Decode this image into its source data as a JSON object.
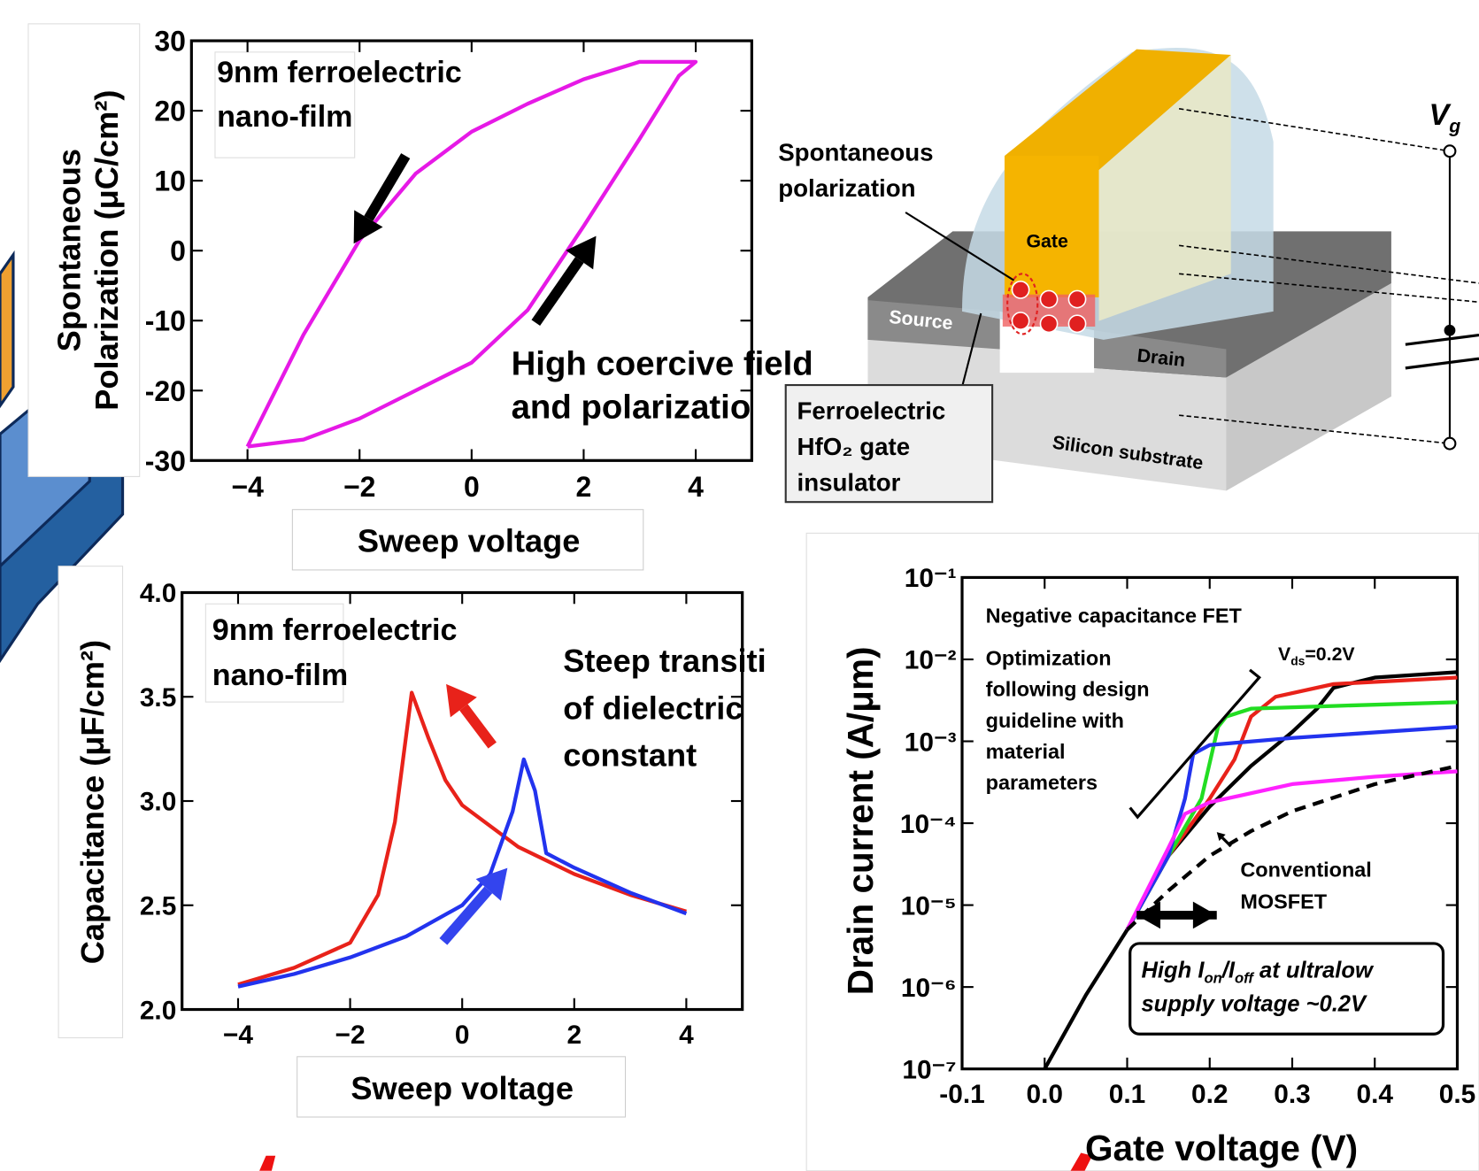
{
  "chart_data": [
    {
      "type": "line",
      "color": "#e619e6",
      "xlim": [
        -5,
        5
      ],
      "ylim": [
        -30,
        30
      ],
      "xticks": [
        {
          "value": -4,
          "label": "−4"
        },
        {
          "value": -2,
          "label": "−2"
        },
        0,
        2,
        4
      ],
      "yticks": [
        -30,
        -20,
        -10,
        0,
        10,
        20,
        30
      ],
      "xlabel": "Sweep voltage",
      "ylabel": [
        "Spontaneous",
        "Polarization (μC/cm²)"
      ],
      "annotations": [
        [
          "9nm ferroelectric",
          "nano-film"
        ],
        [
          "High coercive field",
          "and polarizatio"
        ]
      ],
      "x": [
        -4,
        -3,
        -2,
        -1,
        0,
        1,
        2,
        3,
        3.7,
        4,
        3,
        2,
        1,
        0,
        -1,
        -2,
        -3,
        -3.5,
        -4
      ],
      "values": [
        -28,
        -27,
        -24,
        -20,
        -16,
        -8.5,
        3.5,
        16,
        25,
        27,
        27,
        24.5,
        21,
        17,
        11,
        1.5,
        -12,
        -20,
        -28
      ]
    },
    {
      "type": "line",
      "xlim": [
        -5,
        5
      ],
      "ylim": [
        2,
        4
      ],
      "xticks": [
        {
          "value": -4,
          "label": "−4"
        },
        {
          "value": -2,
          "label": "−2"
        },
        0,
        2,
        4
      ],
      "yticks": [
        {
          "value": 2,
          "label": "2.0"
        },
        2.5,
        {
          "value": 3,
          "label": "3.0"
        },
        3.5,
        {
          "value": 4,
          "label": "4.0"
        }
      ],
      "xlabel": "Sweep voltage",
      "ylabel": [
        "Capacitance (μF/cm²)"
      ],
      "annotations": [
        [
          "9nm ferroelectric",
          "nano-film"
        ],
        [
          "Steep transiti",
          "of dielectric",
          "constant"
        ]
      ],
      "series": [
        {
          "color": "#e8221a",
          "x": [
            -4,
            -3,
            -2,
            -1.5,
            -1.2,
            -0.9,
            -0.6,
            -0.3,
            0,
            1,
            2,
            3,
            4
          ],
          "values": [
            2.12,
            2.2,
            2.32,
            2.55,
            2.9,
            3.52,
            3.3,
            3.1,
            2.98,
            2.78,
            2.65,
            2.55,
            2.47
          ]
        },
        {
          "color": "#2233ee",
          "x": [
            -4,
            -3,
            -2,
            -1,
            0,
            0.5,
            0.9,
            1.1,
            1.3,
            1.5,
            2,
            3,
            4
          ],
          "values": [
            2.11,
            2.17,
            2.25,
            2.35,
            2.5,
            2.65,
            2.95,
            3.2,
            3.05,
            2.75,
            2.68,
            2.56,
            2.46
          ]
        }
      ]
    },
    {
      "type": "line",
      "log_y": true,
      "xlim": [
        -0.1,
        0.5
      ],
      "ylim": [
        1e-07,
        0.1
      ],
      "xticks": [
        -0.1,
        {
          "value": 0,
          "label": "0.0"
        },
        0.1,
        0.2,
        0.3,
        0.4,
        0.5
      ],
      "yticks": [
        {
          "value": 1e-07,
          "label": "10⁻⁷"
        },
        {
          "value": 1e-06,
          "label": "10⁻⁶"
        },
        {
          "value": 1e-05,
          "label": "10⁻⁵"
        },
        {
          "value": 0.0001,
          "label": "10⁻⁴"
        },
        {
          "value": 0.001,
          "label": "10⁻³"
        },
        {
          "value": 0.01,
          "label": "10⁻²"
        },
        {
          "value": 0.1,
          "label": "10⁻¹"
        }
      ],
      "xlabel": "Gate voltage (V)",
      "ylabel": [
        "Drain current (A/μm)"
      ],
      "annotations": [
        [
          "Negative capacitance FET"
        ],
        [
          [
            "V",
            "ds",
            "=0.2V"
          ]
        ],
        [
          "Optimization",
          "following design",
          "guideline  with",
          "material",
          "parameters"
        ],
        [
          "Conventional",
          "MOSFET"
        ],
        [
          [
            "High I",
            "on",
            "/I",
            "off",
            " at ultralow"
          ],
          "supply voltage ~0.2V"
        ]
      ],
      "series": [
        {
          "color": "#000000",
          "x": [
            0,
            0.05,
            0.1,
            0.15,
            0.2,
            0.25,
            0.3,
            0.33,
            0.35,
            0.4,
            0.5
          ],
          "values": [
            1e-07,
            8e-07,
            5e-06,
            4e-05,
            0.00016,
            0.0005,
            0.0013,
            0.0025,
            0.0045,
            0.006,
            0.007
          ]
        },
        {
          "color": "#e8221a",
          "x": [
            0.1,
            0.15,
            0.2,
            0.23,
            0.25,
            0.28,
            0.35,
            0.5
          ],
          "values": [
            5e-06,
            4e-05,
            0.0002,
            0.0006,
            0.002,
            0.0035,
            0.005,
            0.006
          ]
        },
        {
          "color": "#22dd22",
          "x": [
            0.1,
            0.15,
            0.19,
            0.21,
            0.22,
            0.25,
            0.35,
            0.5
          ],
          "values": [
            5e-06,
            4e-05,
            0.0002,
            0.0015,
            0.002,
            0.0025,
            0.0027,
            0.003
          ]
        },
        {
          "color": "#2233ee",
          "x": [
            0.1,
            0.15,
            0.17,
            0.18,
            0.2,
            0.3,
            0.5
          ],
          "values": [
            5e-06,
            4e-05,
            0.0002,
            0.0007,
            0.0009,
            0.0011,
            0.0015
          ]
        },
        {
          "color": "#ff22ff",
          "x": [
            0.1,
            0.15,
            0.17,
            0.2,
            0.3,
            0.4,
            0.5
          ],
          "values": [
            5e-06,
            5e-05,
            0.00013,
            0.00018,
            0.0003,
            0.00037,
            0.00043
          ]
        },
        {
          "color": "#000000",
          "dashed": true,
          "x": [
            0.1,
            0.15,
            0.2,
            0.25,
            0.3,
            0.4,
            0.5
          ],
          "values": [
            5e-06,
            1.5e-05,
            4e-05,
            8e-05,
            0.00014,
            0.0003,
            0.0005
          ]
        }
      ]
    }
  ],
  "diagram": {
    "polarization": [
      "Spontaneous",
      "polarization"
    ],
    "gate": "Gate",
    "source": "Source",
    "drain": "Drain",
    "substrate": "Silicon substrate",
    "insulator": [
      "Ferroelectric",
      "HfO₂ gate",
      "insulator"
    ],
    "vg": [
      "V",
      "g"
    ]
  }
}
